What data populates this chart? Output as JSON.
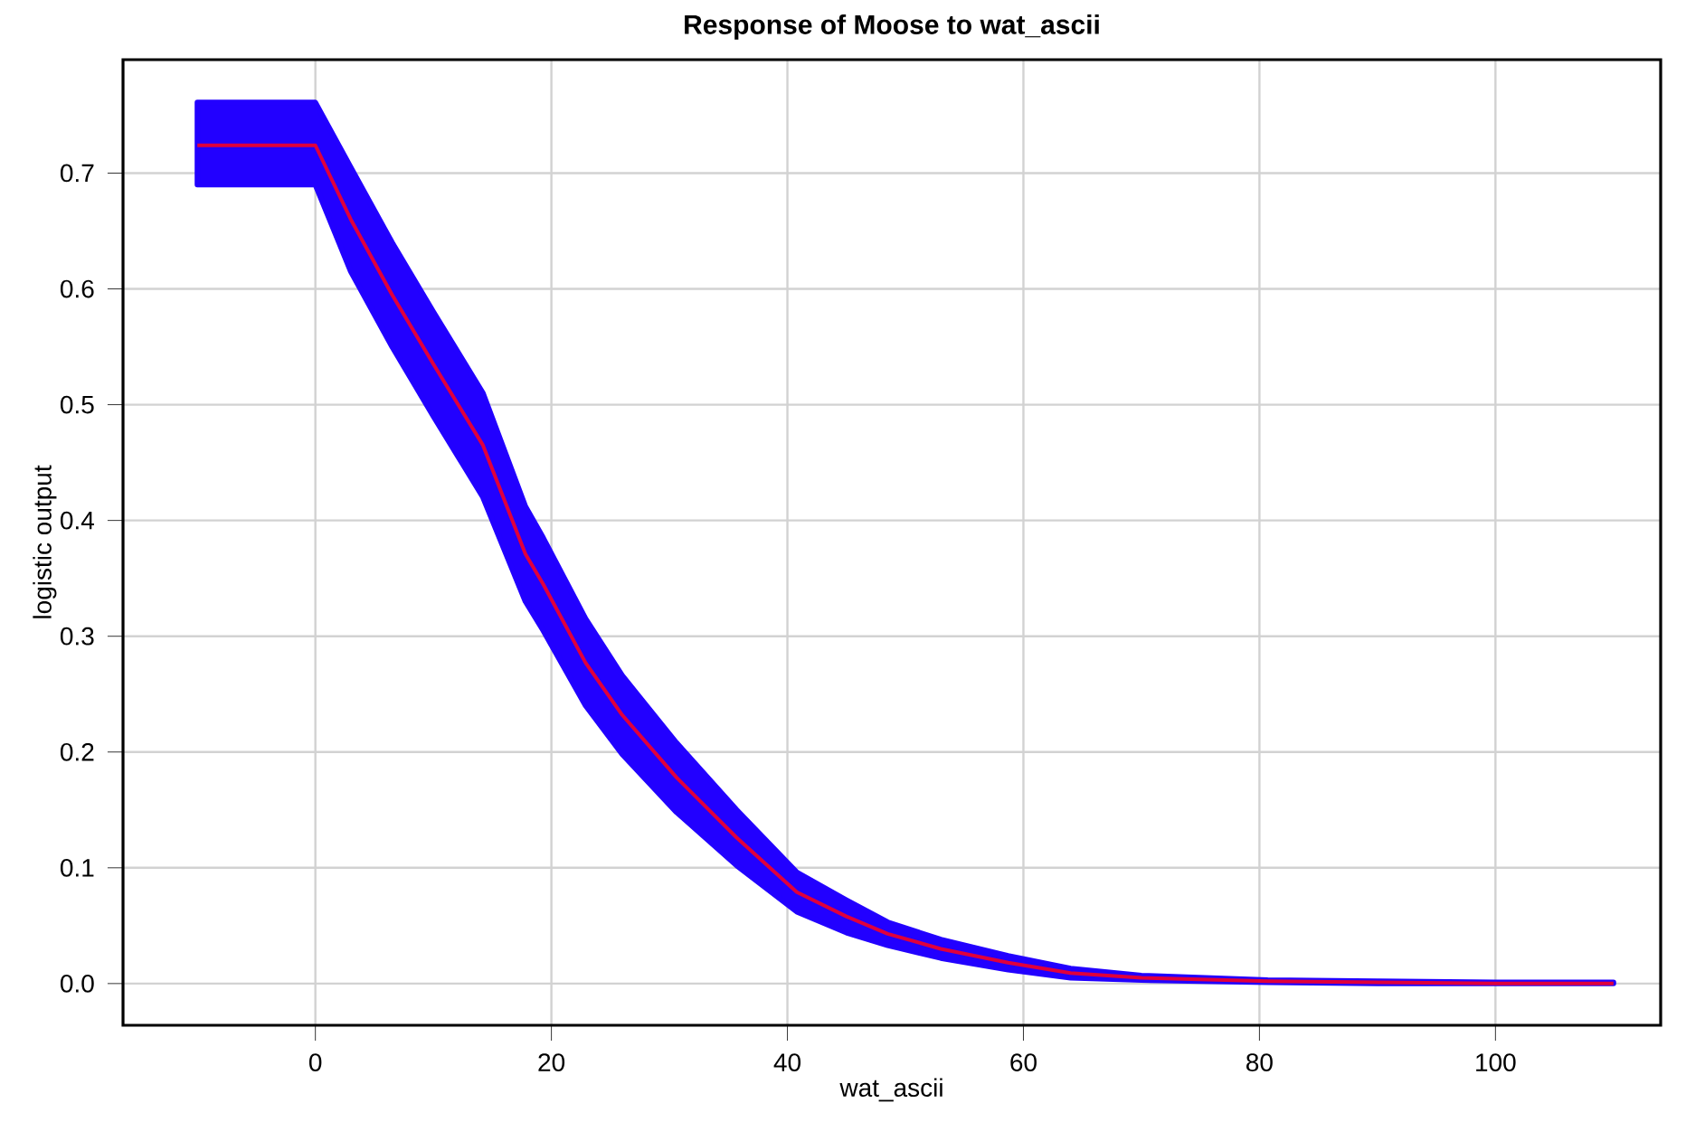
{
  "chart_data": {
    "type": "line",
    "title": "Response of Moose to wat_ascii",
    "xlabel": "wat_ascii",
    "ylabel": "logistic output",
    "xlim": [
      -16.3,
      114
    ],
    "ylim": [
      -0.036,
      0.798
    ],
    "xticks": [
      0,
      20,
      40,
      60,
      80,
      100
    ],
    "yticks": [
      {
        "value": 0,
        "label": "0.0"
      },
      {
        "value": 0.1,
        "label": "0.1"
      },
      {
        "value": 0.2,
        "label": "0.2"
      },
      {
        "value": 0.3,
        "label": "0.3"
      },
      {
        "value": 0.4,
        "label": "0.4"
      },
      {
        "value": 0.5,
        "label": "0.5"
      },
      {
        "value": 0.6,
        "label": "0.6"
      },
      {
        "value": 0.7,
        "label": "0.7"
      }
    ],
    "grid": true,
    "marker": "none",
    "line_style": "solid",
    "series": [
      {
        "color": "#e0003c",
        "x": [
          -10,
          0,
          3,
          6.5,
          10,
          14.2,
          17.8,
          19.3,
          22.9,
          26,
          30.6,
          35.7,
          40.8,
          45,
          48.5,
          53,
          58.7,
          64,
          70,
          80.7,
          90,
          100,
          110
        ],
        "values": [
          0.724,
          0.724,
          0.66,
          0.595,
          0.535,
          0.465,
          0.371,
          0.345,
          0.277,
          0.232,
          0.178,
          0.126,
          0.079,
          0.058,
          0.043,
          0.03,
          0.018,
          0.009,
          0.005,
          0.002,
          0.001,
          0.0,
          0.0
        ],
        "lower": [
          0.69,
          0.69,
          0.615,
          0.55,
          0.49,
          0.42,
          0.33,
          0.305,
          0.24,
          0.198,
          0.148,
          0.102,
          0.062,
          0.044,
          0.033,
          0.022,
          0.012,
          0.005,
          0.003,
          0.001,
          0.0,
          0.0,
          0.0
        ],
        "upper": [
          0.761,
          0.761,
          0.705,
          0.64,
          0.58,
          0.51,
          0.412,
          0.385,
          0.315,
          0.266,
          0.208,
          0.15,
          0.096,
          0.072,
          0.053,
          0.038,
          0.024,
          0.013,
          0.007,
          0.003,
          0.002,
          0.001,
          0.001
        ]
      }
    ]
  }
}
